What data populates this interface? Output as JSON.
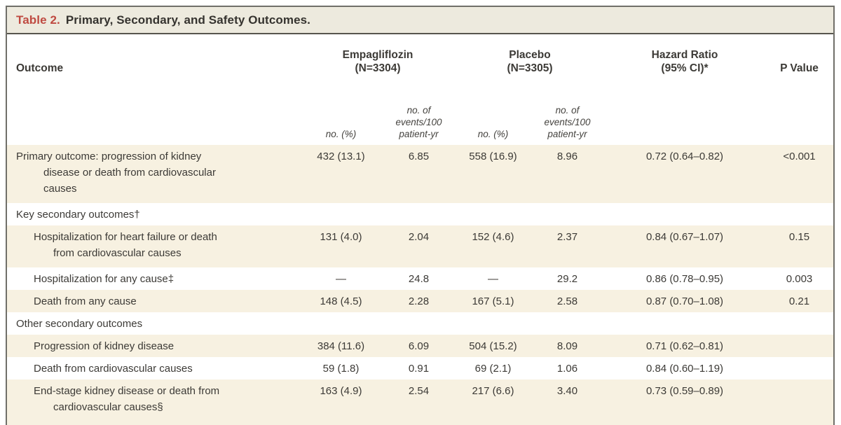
{
  "table": {
    "title_label": "Table 2.",
    "title_text": "Primary, Secondary, and Safety Outcomes.",
    "header": {
      "outcome": "Outcome",
      "empagliflozin": "Empagliflozin\n(N=3304)",
      "placebo": "Placebo\n(N=3305)",
      "hazard_ratio": "Hazard Ratio\n(95% CI)*",
      "p_value": "P Value",
      "sub_no_pct": "no. (%)",
      "sub_events": "no. of\nevents/100\npatient-yr"
    },
    "rows": [
      {
        "type": "data",
        "indent": 0,
        "shaded": true,
        "label": "Primary outcome: progression of kidney\ndisease or death from cardiovascular\ncauses",
        "empa_n": "432 (13.1)",
        "empa_rate": "6.85",
        "placebo_n": "558 (16.9)",
        "placebo_rate": "8.96",
        "hr": "0.72 (0.64–0.82)",
        "p": "<0.001"
      },
      {
        "type": "section",
        "indent": 0,
        "shaded": false,
        "label": "Key secondary outcomes†",
        "empa_n": "",
        "empa_rate": "",
        "placebo_n": "",
        "placebo_rate": "",
        "hr": "",
        "p": ""
      },
      {
        "type": "data",
        "indent": 1,
        "shaded": true,
        "label": "Hospitalization for heart failure or death\nfrom cardiovascular causes",
        "empa_n": "131 (4.0)",
        "empa_rate": "2.04",
        "placebo_n": "152 (4.6)",
        "placebo_rate": "2.37",
        "hr": "0.84 (0.67–1.07)",
        "p": "0.15"
      },
      {
        "type": "data",
        "indent": 1,
        "shaded": false,
        "label": "Hospitalization for any cause‡",
        "empa_n": "—",
        "empa_rate": "24.8",
        "placebo_n": "—",
        "placebo_rate": "29.2",
        "hr": "0.86 (0.78–0.95)",
        "p": "0.003"
      },
      {
        "type": "data",
        "indent": 1,
        "shaded": true,
        "label": "Death from any cause",
        "empa_n": "148 (4.5)",
        "empa_rate": "2.28",
        "placebo_n": "167 (5.1)",
        "placebo_rate": "2.58",
        "hr": "0.87 (0.70–1.08)",
        "p": "0.21"
      },
      {
        "type": "section",
        "indent": 0,
        "shaded": false,
        "label": "Other secondary outcomes",
        "empa_n": "",
        "empa_rate": "",
        "placebo_n": "",
        "placebo_rate": "",
        "hr": "",
        "p": ""
      },
      {
        "type": "data",
        "indent": 1,
        "shaded": true,
        "label": "Progression of kidney disease",
        "empa_n": "384 (11.6)",
        "empa_rate": "6.09",
        "placebo_n": "504 (15.2)",
        "placebo_rate": "8.09",
        "hr": "0.71 (0.62–0.81)",
        "p": ""
      },
      {
        "type": "data",
        "indent": 1,
        "shaded": false,
        "label": "Death from cardiovascular causes",
        "empa_n": "59 (1.8)",
        "empa_rate": "0.91",
        "placebo_n": "69 (2.1)",
        "placebo_rate": "1.06",
        "hr": "0.84 (0.60–1.19)",
        "p": ""
      },
      {
        "type": "data",
        "indent": 1,
        "shaded": true,
        "label": "End-stage kidney disease or death from\ncardiovascular causes§",
        "empa_n": "163 (4.9)",
        "empa_rate": "2.54",
        "placebo_n": "217 (6.6)",
        "placebo_rate": "3.40",
        "hr": "0.73 (0.59–0.89)",
        "p": ""
      }
    ]
  }
}
